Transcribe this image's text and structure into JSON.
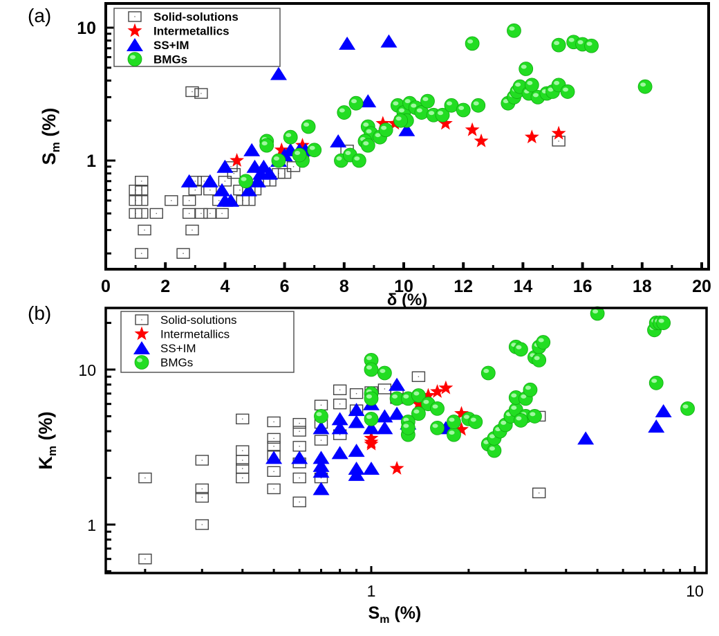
{
  "chart_data": [
    {
      "type": "scatter",
      "panel_label": "(a)",
      "xlabel": "δ (%)",
      "ylabel_parts": [
        "S",
        "m",
        " (%)"
      ],
      "xscale": "linear",
      "yscale": "log",
      "xlim": [
        0,
        20
      ],
      "ylim": [
        0.15,
        15
      ],
      "xticks": [
        0,
        2,
        4,
        6,
        8,
        10,
        12,
        14,
        16,
        18,
        20
      ],
      "yticks": [
        1,
        10
      ],
      "grid": false,
      "legend_placement": "top-left",
      "series": [
        {
          "name": "Solid-solutions",
          "marker": "open-square",
          "color": "#555555",
          "points": [
            [
              1.0,
              0.6
            ],
            [
              1.2,
              0.7
            ],
            [
              1.2,
              0.6
            ],
            [
              1.0,
              0.5
            ],
            [
              1.2,
              0.5
            ],
            [
              1.0,
              0.4
            ],
            [
              1.2,
              0.4
            ],
            [
              1.3,
              0.3
            ],
            [
              1.2,
              0.2
            ],
            [
              1.7,
              0.4
            ],
            [
              2.2,
              0.5
            ],
            [
              2.6,
              0.2
            ],
            [
              2.8,
              0.5
            ],
            [
              2.8,
              0.4
            ],
            [
              2.9,
              0.3
            ],
            [
              3.0,
              0.6
            ],
            [
              3.2,
              0.4
            ],
            [
              3.5,
              0.4
            ],
            [
              3.9,
              0.4
            ],
            [
              3.0,
              0.7
            ],
            [
              3.3,
              0.7
            ],
            [
              3.5,
              0.6
            ],
            [
              3.8,
              0.5
            ],
            [
              4.0,
              0.7
            ],
            [
              4.2,
              0.9
            ],
            [
              4.3,
              0.8
            ],
            [
              4.5,
              0.6
            ],
            [
              4.6,
              0.5
            ],
            [
              4.8,
              0.6
            ],
            [
              5.0,
              0.6
            ],
            [
              5.3,
              0.7
            ],
            [
              5.5,
              0.7
            ],
            [
              5.8,
              0.8
            ],
            [
              6.0,
              0.8
            ],
            [
              6.3,
              0.9
            ],
            [
              6.6,
              1.1
            ],
            [
              8.1,
              1.2
            ],
            [
              15.2,
              1.4
            ],
            [
              2.9,
              3.3
            ],
            [
              3.2,
              3.2
            ],
            [
              4.8,
              0.5
            ]
          ]
        },
        {
          "name": "Intermetallics",
          "marker": "star",
          "color": "#ff0000",
          "points": [
            [
              4.4,
              1.0
            ],
            [
              5.9,
              1.2
            ],
            [
              6.6,
              1.3
            ],
            [
              9.3,
              1.9
            ],
            [
              9.7,
              1.9
            ],
            [
              11.4,
              1.9
            ],
            [
              12.3,
              1.7
            ],
            [
              12.6,
              1.4
            ],
            [
              14.3,
              1.5
            ],
            [
              15.2,
              1.6
            ]
          ]
        },
        {
          "name": "SS+IM",
          "marker": "triangle",
          "color": "#0000ff",
          "points": [
            [
              2.8,
              0.7
            ],
            [
              3.5,
              0.7
            ],
            [
              4.0,
              0.9
            ],
            [
              3.9,
              0.6
            ],
            [
              4.0,
              0.5
            ],
            [
              4.2,
              0.5
            ],
            [
              4.9,
              1.2
            ],
            [
              5.0,
              0.9
            ],
            [
              5.2,
              0.8
            ],
            [
              5.3,
              0.9
            ],
            [
              5.5,
              0.8
            ],
            [
              5.8,
              1.0
            ],
            [
              6.0,
              1.1
            ],
            [
              6.2,
              1.2
            ],
            [
              6.5,
              1.2
            ],
            [
              6.7,
              1.2
            ],
            [
              5.1,
              0.7
            ],
            [
              7.8,
              1.4
            ],
            [
              5.8,
              4.5
            ],
            [
              8.1,
              7.6
            ],
            [
              9.5,
              7.9
            ],
            [
              8.8,
              2.8
            ],
            [
              10.1,
              1.7
            ],
            [
              4.8,
              0.6
            ]
          ]
        },
        {
          "name": "BMGs",
          "marker": "sphere",
          "color": "#22dd22",
          "points": [
            [
              4.7,
              0.7
            ],
            [
              5.4,
              1.4
            ],
            [
              5.4,
              1.3
            ],
            [
              5.8,
              1.0
            ],
            [
              6.6,
              1.0
            ],
            [
              6.2,
              1.5
            ],
            [
              6.8,
              1.8
            ],
            [
              7.0,
              1.2
            ],
            [
              6.5,
              1.1
            ],
            [
              8.0,
              2.3
            ],
            [
              8.4,
              2.7
            ],
            [
              7.9,
              1.0
            ],
            [
              8.2,
              1.1
            ],
            [
              8.5,
              1.0
            ],
            [
              8.8,
              1.8
            ],
            [
              8.9,
              1.6
            ],
            [
              8.7,
              1.4
            ],
            [
              8.8,
              1.3
            ],
            [
              9.2,
              1.5
            ],
            [
              9.4,
              1.7
            ],
            [
              9.8,
              2.6
            ],
            [
              10.0,
              2.3
            ],
            [
              10.2,
              2.7
            ],
            [
              10.4,
              2.5
            ],
            [
              10.6,
              2.3
            ],
            [
              10.8,
              2.8
            ],
            [
              11.0,
              2.2
            ],
            [
              11.3,
              2.2
            ],
            [
              11.6,
              2.6
            ],
            [
              12.0,
              2.4
            ],
            [
              12.5,
              2.6
            ],
            [
              12.3,
              7.6
            ],
            [
              13.5,
              2.7
            ],
            [
              13.7,
              3.0
            ],
            [
              13.8,
              3.3
            ],
            [
              13.9,
              3.6
            ],
            [
              14.2,
              3.2
            ],
            [
              14.3,
              3.7
            ],
            [
              14.5,
              3.0
            ],
            [
              14.8,
              3.2
            ],
            [
              15.0,
              3.3
            ],
            [
              15.2,
              3.7
            ],
            [
              15.5,
              3.3
            ],
            [
              15.2,
              7.4
            ],
            [
              15.7,
              7.8
            ],
            [
              16.0,
              7.5
            ],
            [
              16.3,
              7.3
            ],
            [
              14.1,
              4.9
            ],
            [
              13.7,
              9.5
            ],
            [
              18.1,
              3.6
            ],
            [
              10.1,
              2.0
            ],
            [
              9.9,
              2.0
            ]
          ]
        }
      ]
    },
    {
      "type": "scatter",
      "panel_label": "(b)",
      "xlabel_parts": [
        "S",
        "m",
        " (%)"
      ],
      "ylabel_parts": [
        "K",
        "m",
        " (%)"
      ],
      "xscale": "log",
      "yscale": "log",
      "xlim": [
        0.15,
        10.9
      ],
      "ylim": [
        0.49,
        25
      ],
      "xticks": [
        1,
        10
      ],
      "yticks": [
        1,
        10
      ],
      "grid": false,
      "legend_placement": "top-left",
      "series": [
        {
          "name": "Solid-solutions",
          "marker": "open-square",
          "color": "#555555",
          "points": [
            [
              0.2,
              2.0
            ],
            [
              0.2,
              0.6
            ],
            [
              0.3,
              2.6
            ],
            [
              0.3,
              1.7
            ],
            [
              0.3,
              1.5
            ],
            [
              0.3,
              1.0
            ],
            [
              0.4,
              4.8
            ],
            [
              0.4,
              3.0
            ],
            [
              0.4,
              2.6
            ],
            [
              0.4,
              2.3
            ],
            [
              0.4,
              2.0
            ],
            [
              0.5,
              4.6
            ],
            [
              0.5,
              3.6
            ],
            [
              0.5,
              3.2
            ],
            [
              0.5,
              2.8
            ],
            [
              0.5,
              2.2
            ],
            [
              0.5,
              1.7
            ],
            [
              0.6,
              4.5
            ],
            [
              0.6,
              4.0
            ],
            [
              0.6,
              3.2
            ],
            [
              0.6,
              2.5
            ],
            [
              0.6,
              2.0
            ],
            [
              0.6,
              1.4
            ],
            [
              0.7,
              5.9
            ],
            [
              0.7,
              4.5
            ],
            [
              0.7,
              3.5
            ],
            [
              0.7,
              2.0
            ],
            [
              0.8,
              7.4
            ],
            [
              0.8,
              6.0
            ],
            [
              0.8,
              3.8
            ],
            [
              0.9,
              7.0
            ],
            [
              0.9,
              5.5
            ],
            [
              1.0,
              7.2
            ],
            [
              1.1,
              7.5
            ],
            [
              1.2,
              6.5
            ],
            [
              1.4,
              9.0
            ],
            [
              1.2,
              7.0
            ],
            [
              3.3,
              1.6
            ],
            [
              3.3,
              5.0
            ]
          ]
        },
        {
          "name": "Intermetallics",
          "marker": "star",
          "color": "#ff0000",
          "points": [
            [
              1.0,
              3.6
            ],
            [
              1.0,
              3.3
            ],
            [
              1.2,
              2.3
            ],
            [
              1.4,
              6.0
            ],
            [
              1.5,
              6.8
            ],
            [
              1.6,
              7.2
            ],
            [
              1.7,
              7.6
            ],
            [
              1.9,
              5.2
            ],
            [
              1.9,
              4.1
            ],
            [
              1.0,
              3.4
            ]
          ]
        },
        {
          "name": "SS+IM",
          "marker": "triangle",
          "color": "#0000ff",
          "points": [
            [
              0.5,
              2.7
            ],
            [
              0.6,
              2.7
            ],
            [
              0.7,
              4.2
            ],
            [
              0.7,
              2.7
            ],
            [
              0.7,
              2.4
            ],
            [
              0.7,
              2.2
            ],
            [
              0.7,
              1.7
            ],
            [
              0.8,
              4.8
            ],
            [
              0.8,
              4.2
            ],
            [
              0.8,
              2.9
            ],
            [
              0.9,
              5.5
            ],
            [
              0.9,
              4.6
            ],
            [
              0.9,
              3.0
            ],
            [
              0.9,
              2.3
            ],
            [
              0.9,
              2.1
            ],
            [
              1.0,
              6.0
            ],
            [
              1.0,
              4.2
            ],
            [
              1.0,
              2.3
            ],
            [
              1.1,
              5.0
            ],
            [
              1.1,
              4.2
            ],
            [
              1.2,
              8.0
            ],
            [
              1.2,
              5.2
            ],
            [
              1.3,
              4.5
            ],
            [
              1.7,
              4.2
            ],
            [
              4.6,
              3.6
            ],
            [
              7.6,
              4.3
            ],
            [
              8.0,
              5.4
            ]
          ]
        },
        {
          "name": "BMGs",
          "marker": "sphere",
          "color": "#22dd22",
          "points": [
            [
              0.7,
              5.0
            ],
            [
              1.0,
              11.5
            ],
            [
              1.0,
              10.0
            ],
            [
              1.1,
              9.5
            ],
            [
              1.0,
              7.0
            ],
            [
              1.0,
              6.5
            ],
            [
              1.0,
              4.8
            ],
            [
              1.2,
              6.5
            ],
            [
              1.3,
              6.5
            ],
            [
              1.4,
              6.8
            ],
            [
              1.5,
              6.0
            ],
            [
              1.6,
              5.6
            ],
            [
              1.4,
              5.2
            ],
            [
              1.3,
              4.6
            ],
            [
              1.3,
              3.8
            ],
            [
              1.3,
              4.2
            ],
            [
              1.6,
              4.2
            ],
            [
              1.8,
              3.8
            ],
            [
              1.8,
              4.6
            ],
            [
              2.0,
              4.8
            ],
            [
              2.1,
              4.6
            ],
            [
              2.3,
              9.5
            ],
            [
              2.3,
              3.3
            ],
            [
              2.4,
              3.0
            ],
            [
              2.4,
              3.6
            ],
            [
              2.5,
              4.0
            ],
            [
              2.6,
              4.4
            ],
            [
              2.7,
              5.0
            ],
            [
              2.8,
              5.5
            ],
            [
              2.8,
              6.6
            ],
            [
              3.0,
              6.5
            ],
            [
              3.1,
              7.4
            ],
            [
              2.8,
              14
            ],
            [
              2.9,
              13.5
            ],
            [
              3.2,
              12
            ],
            [
              3.3,
              14
            ],
            [
              3.4,
              15
            ],
            [
              3.0,
              5.0
            ],
            [
              3.2,
              5.0
            ],
            [
              5.0,
              23
            ],
            [
              7.5,
              18
            ],
            [
              7.6,
              20
            ],
            [
              7.8,
              20
            ],
            [
              8.0,
              20
            ],
            [
              7.6,
              8.2
            ],
            [
              9.5,
              5.6
            ],
            [
              3.3,
              11.5
            ],
            [
              2.9,
              4.7
            ]
          ]
        }
      ]
    }
  ]
}
